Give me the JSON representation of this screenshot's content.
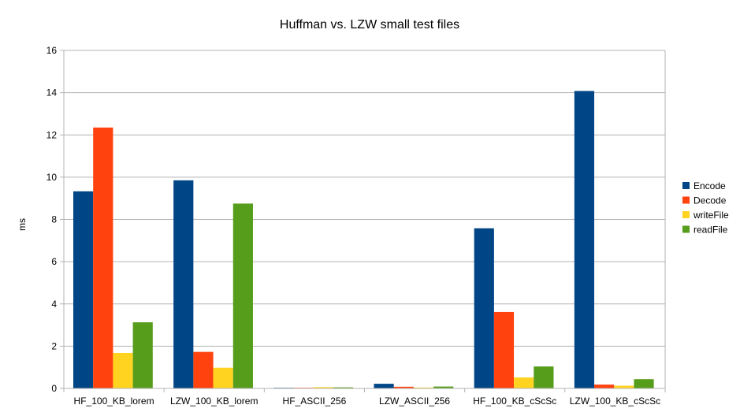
{
  "chart_data": {
    "type": "bar",
    "title": "Huffman vs. LZW small test files",
    "xlabel": "",
    "ylabel": "ms",
    "ylim": [
      0,
      16
    ],
    "yticks": [
      0,
      2,
      4,
      6,
      8,
      10,
      12,
      14,
      16
    ],
    "grid": true,
    "legend_position": "right",
    "categories": [
      "HF_100_KB_lorem",
      "LZW_100_KB_lorem",
      "HF_ASCII_256",
      "LZW_ASCII_256",
      "HF_100_KB_cScSc",
      "LZW_100_KB_cScSc"
    ],
    "series": [
      {
        "name": "Encode",
        "color": "#004586",
        "values": [
          9.33,
          9.85,
          0.03,
          0.22,
          7.58,
          14.08
        ]
      },
      {
        "name": "Decode",
        "color": "#ff420e",
        "values": [
          12.35,
          1.73,
          0.03,
          0.08,
          3.62,
          0.18
        ]
      },
      {
        "name": "writeFile",
        "color": "#ffd320",
        "values": [
          1.68,
          0.98,
          0.06,
          0.04,
          0.52,
          0.13
        ]
      },
      {
        "name": "readFile",
        "color": "#579d1c",
        "values": [
          3.13,
          8.75,
          0.05,
          0.09,
          1.04,
          0.44
        ]
      }
    ]
  }
}
